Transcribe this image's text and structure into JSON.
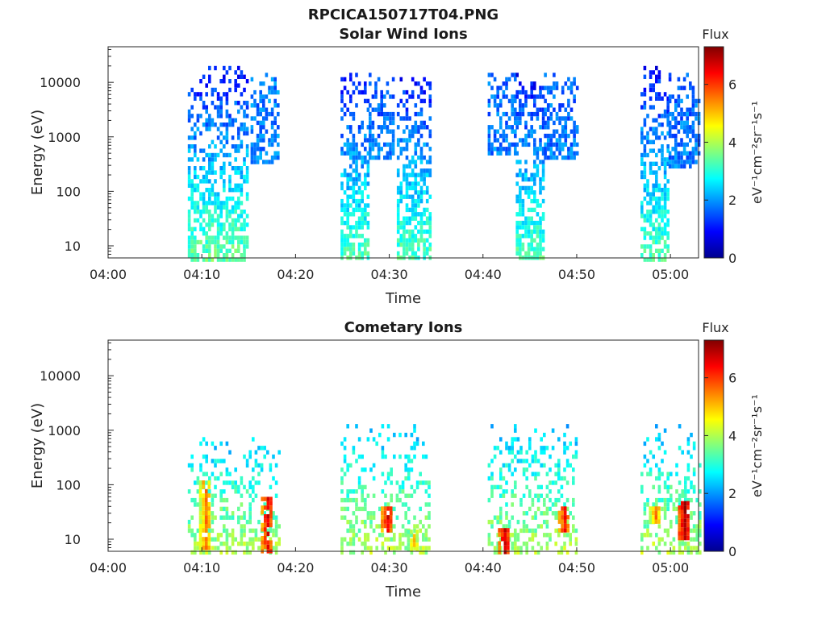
{
  "figure": {
    "title": "RPCICA150717T04.PNG"
  },
  "chart_data": [
    {
      "type": "heatmap",
      "title": "Solar Wind Ions",
      "xlabel": "Time",
      "ylabel": "Energy (eV)",
      "x_ticks": [
        "04:00",
        "04:10",
        "04:20",
        "04:30",
        "04:40",
        "04:50",
        "05:00"
      ],
      "x_range_minutes": [
        0,
        63
      ],
      "y_scale": "log",
      "y_ticks": [
        10,
        100,
        1000,
        10000
      ],
      "y_tick_labels": [
        "10",
        "100",
        "1000",
        "10000"
      ],
      "y_range": [
        6,
        45000
      ],
      "colorbar": {
        "title": "Flux",
        "label": "eV⁻¹cm⁻²sr⁻¹s⁻¹",
        "range": [
          0,
          7.3
        ],
        "ticks": [
          0,
          2,
          4,
          6
        ],
        "colormap": "jet"
      },
      "regions": [
        {
          "start_min": 8.5,
          "end_min": 14.7,
          "low_ev": 6,
          "high_ev": 20000,
          "flux_low_energy": 3.5,
          "flux_high_energy": 1.0
        },
        {
          "start_min": 15.2,
          "end_min": 18.2,
          "low_ev": 350,
          "high_ev": 15000,
          "flux_low_energy": 1.8,
          "flux_high_energy": 1.8
        },
        {
          "start_min": 24.8,
          "end_min": 27.8,
          "low_ev": 6,
          "high_ev": 15000,
          "flux_low_energy": 3.3,
          "flux_high_energy": 1.0
        },
        {
          "start_min": 27.8,
          "end_min": 30.5,
          "low_ev": 400,
          "high_ev": 15000,
          "flux_low_energy": 1.8,
          "flux_high_energy": 1.4
        },
        {
          "start_min": 30.8,
          "end_min": 34.3,
          "low_ev": 6,
          "high_ev": 15000,
          "flux_low_energy": 3.3,
          "flux_high_energy": 1.0
        },
        {
          "start_min": 40.5,
          "end_min": 43.5,
          "low_ev": 500,
          "high_ev": 15000,
          "flux_low_energy": 1.8,
          "flux_high_energy": 1.6
        },
        {
          "start_min": 43.5,
          "end_min": 46.5,
          "low_ev": 6,
          "high_ev": 15000,
          "flux_low_energy": 3.3,
          "flux_high_energy": 1.0
        },
        {
          "start_min": 46.5,
          "end_min": 50.0,
          "low_ev": 400,
          "high_ev": 15000,
          "flux_low_energy": 1.8,
          "flux_high_energy": 1.6
        },
        {
          "start_min": 56.8,
          "end_min": 59.8,
          "low_ev": 6,
          "high_ev": 20000,
          "flux_low_energy": 3.3,
          "flux_high_energy": 1.0
        },
        {
          "start_min": 59.8,
          "end_min": 63.0,
          "low_ev": 300,
          "high_ev": 15000,
          "flux_low_energy": 1.8,
          "flux_high_energy": 1.6
        }
      ]
    },
    {
      "type": "heatmap",
      "title": "Cometary Ions",
      "xlabel": "Time",
      "ylabel": "Energy (eV)",
      "x_ticks": [
        "04:00",
        "04:10",
        "04:20",
        "04:30",
        "04:40",
        "04:50",
        "05:00"
      ],
      "x_range_minutes": [
        0,
        63
      ],
      "y_scale": "log",
      "y_ticks": [
        10,
        100,
        1000,
        10000
      ],
      "y_tick_labels": [
        "10",
        "100",
        "1000",
        "10000"
      ],
      "y_range": [
        6,
        45000
      ],
      "colorbar": {
        "title": "Flux",
        "label": "eV⁻¹cm⁻²sr⁻¹s⁻¹",
        "range": [
          0,
          7.3
        ],
        "ticks": [
          0,
          2,
          4,
          6
        ],
        "colormap": "jet"
      },
      "regions": [
        {
          "start_min": 8.5,
          "end_min": 18.2,
          "low_ev": 6,
          "high_ev": 900,
          "flux_low_energy": 4.0,
          "flux_high_energy": 2.3
        },
        {
          "start_min": 24.8,
          "end_min": 34.3,
          "low_ev": 6,
          "high_ev": 1300,
          "flux_low_energy": 4.0,
          "flux_high_energy": 2.3
        },
        {
          "start_min": 40.5,
          "end_min": 50.0,
          "low_ev": 6,
          "high_ev": 1300,
          "flux_low_energy": 4.0,
          "flux_high_energy": 2.3
        },
        {
          "start_min": 56.8,
          "end_min": 63.0,
          "low_ev": 6,
          "high_ev": 1300,
          "flux_low_energy": 4.0,
          "flux_high_energy": 2.3
        }
      ],
      "hotspots": [
        {
          "time_min": 10.3,
          "low_ev": 7,
          "high_ev": 120,
          "flux": 5.5
        },
        {
          "time_min": 16.9,
          "low_ev": 6,
          "high_ev": 60,
          "flux": 6.5
        },
        {
          "time_min": 29.7,
          "low_ev": 15,
          "high_ev": 40,
          "flux": 6.5
        },
        {
          "time_min": 32.5,
          "low_ev": 6,
          "high_ev": 15,
          "flux": 4.8
        },
        {
          "time_min": 42.2,
          "low_ev": 6,
          "high_ev": 16,
          "flux": 6.8
        },
        {
          "time_min": 48.6,
          "low_ev": 15,
          "high_ev": 40,
          "flux": 6.2
        },
        {
          "time_min": 58.3,
          "low_ev": 20,
          "high_ev": 40,
          "flux": 5.5
        },
        {
          "time_min": 61.4,
          "low_ev": 10,
          "high_ev": 50,
          "flux": 7.0
        }
      ]
    }
  ]
}
